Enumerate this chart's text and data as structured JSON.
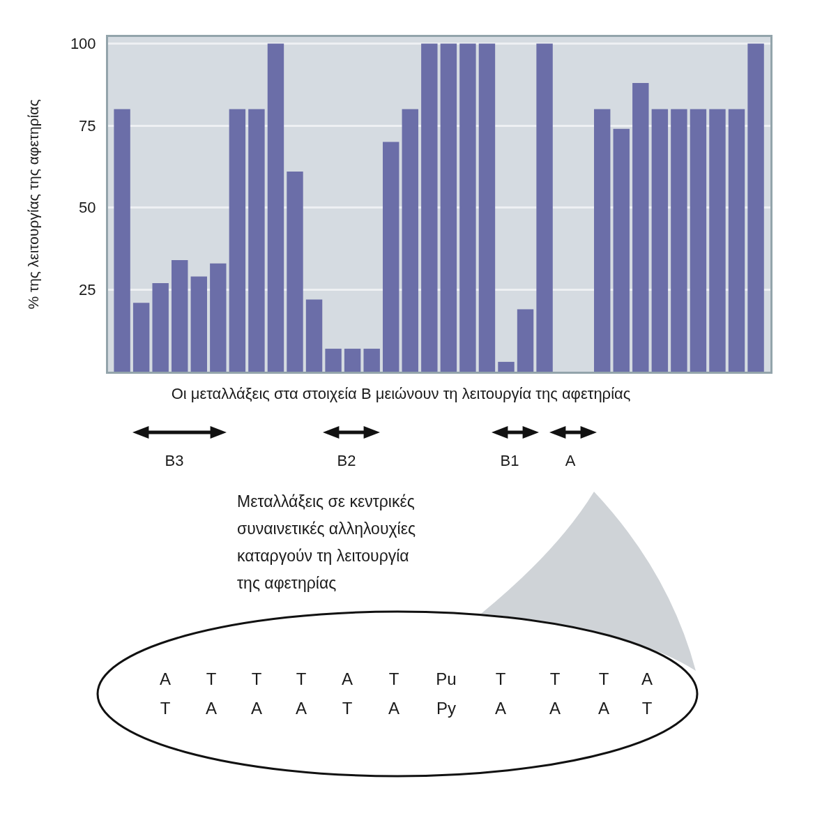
{
  "chart_data": {
    "type": "bar",
    "ylabel": "% της λειτουργίας της αφετηρίας",
    "categories": [
      null,
      null,
      null,
      null,
      null,
      null,
      null,
      null,
      null,
      null,
      null,
      null,
      null,
      null,
      null,
      null,
      null,
      null,
      null,
      null,
      null,
      null,
      null,
      null,
      null,
      null,
      null,
      null,
      null,
      null,
      null,
      null,
      null,
      null
    ],
    "values": [
      80,
      21,
      27,
      34,
      29,
      33,
      80,
      80,
      100,
      61,
      22,
      7,
      7,
      7,
      70,
      80,
      100,
      100,
      100,
      100,
      3,
      19,
      100,
      null,
      null,
      80,
      74,
      88,
      80,
      80,
      80,
      80,
      80,
      100
    ],
    "color": "#6b6ea8",
    "ylim": [
      0,
      102
    ],
    "yticks": [
      25,
      50,
      75,
      100
    ],
    "grid": "y",
    "tick_labels": "y",
    "annotations": [
      "Οι μεταλλάξεις στα στοιχεία B μειώνουν τη λειτουργία της αφετηρίας",
      "B3",
      "B2",
      "B1",
      "A",
      "Μεταλλάξεις σε κεντρικές\nσυναινετικές αλληλουχίες\nκαταργούν τη λειτουργία\nτης αφετηρίας",
      "A T T T A T Pu T T T A",
      "T A A A T A Py A A A T"
    ]
  }
}
